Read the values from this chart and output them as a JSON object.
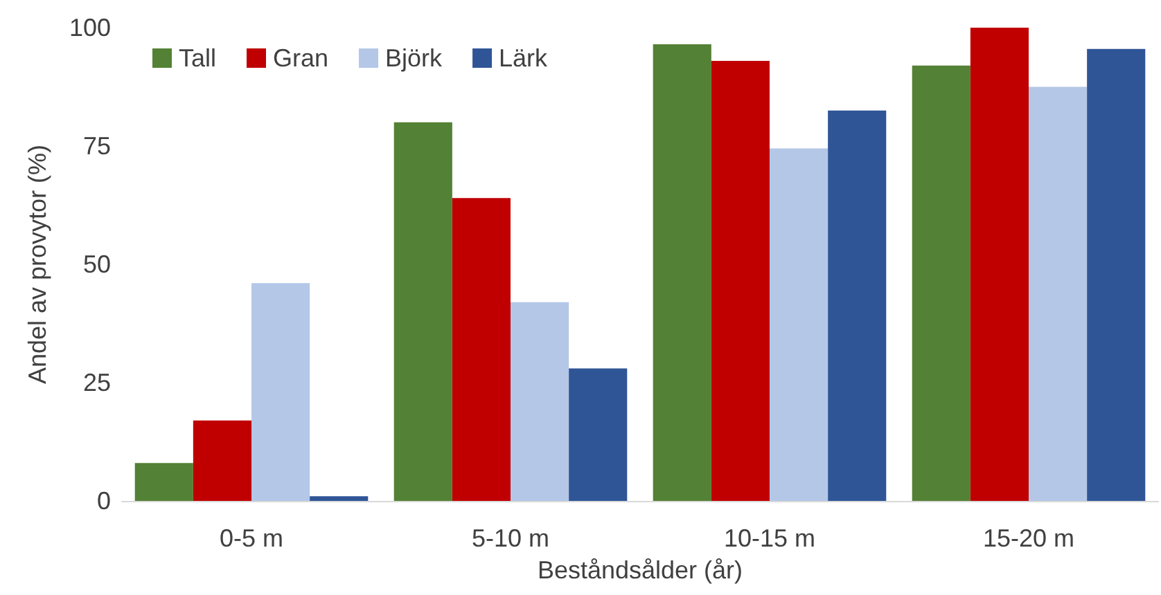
{
  "chart_data": {
    "type": "bar",
    "xlabel": "Beståndsålder (år)",
    "ylabel": "Andel av provytor (%)",
    "categories": [
      "0-5 m",
      "5-10 m",
      "10-15 m",
      "15-20 m"
    ],
    "series": [
      {
        "name": "Tall",
        "color": "#538135",
        "values": [
          8,
          80,
          96.5,
          92
        ]
      },
      {
        "name": "Gran",
        "color": "#c00000",
        "values": [
          17,
          64,
          93,
          100
        ]
      },
      {
        "name": "Björk",
        "color": "#b4c7e7",
        "values": [
          46,
          42,
          74.5,
          87.5
        ]
      },
      {
        "name": "Lärk",
        "color": "#2f5597",
        "values": [
          1,
          28,
          82.5,
          95.5
        ]
      }
    ],
    "ylim": [
      0,
      100
    ],
    "yticks": [
      0,
      25,
      50,
      75,
      100
    ],
    "grid": false,
    "legend": "top left"
  }
}
